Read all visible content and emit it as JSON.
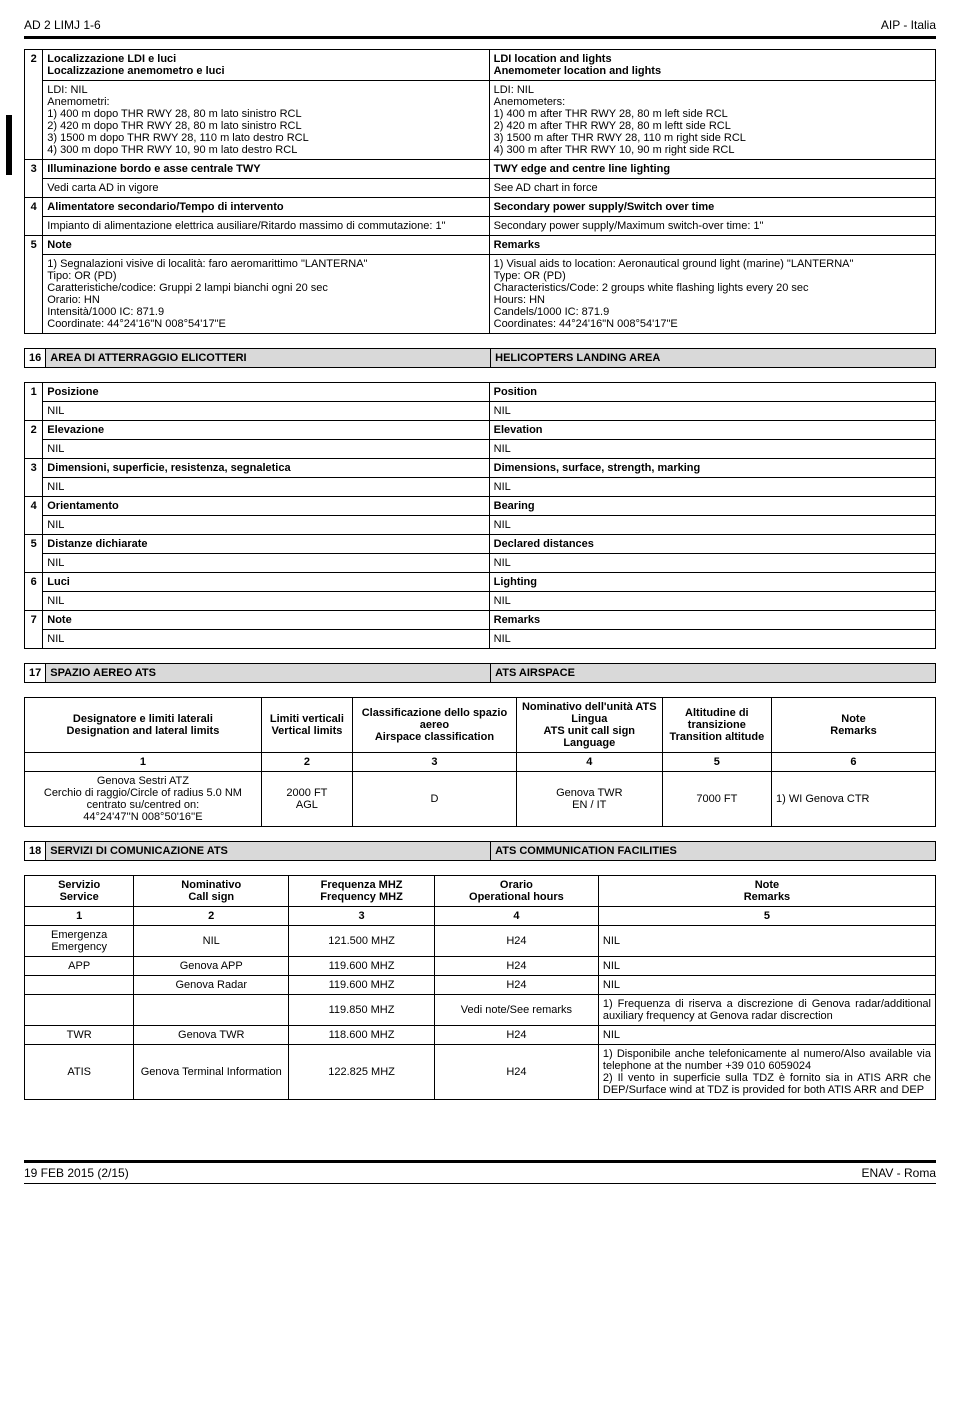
{
  "header": {
    "left": "AD 2 LIMJ 1-6",
    "right": "AIP - Italia"
  },
  "footer": {
    "left": "19 FEB 2015   (2/15)",
    "right": "ENAV - Roma"
  },
  "sec_top": {
    "r2": {
      "num": "2",
      "it_hdr1": "Localizzazione LDI e luci",
      "it_hdr2": "Localizzazione anemometro e luci",
      "en_hdr1": "LDI location and lights",
      "en_hdr2": "Anemometer location and lights",
      "it_l1": "LDI: NIL",
      "it_l2": "Anemometri:",
      "it_l3": "1) 400 m dopo THR RWY 28, 80 m lato sinistro RCL",
      "it_l4": "2) 420 m dopo THR RWY 28, 80 m lato sinistro RCL",
      "it_l5": "3) 1500 m dopo THR RWY 28, 110 m lato destro RCL",
      "it_l6": "4) 300 m dopo THR RWY 10, 90 m lato destro RCL",
      "en_l1": "LDI: NIL",
      "en_l2": "Anemometers:",
      "en_l3": "1) 400 m after THR RWY 28, 80 m left side RCL",
      "en_l4": "2) 420 m after THR RWY 28, 80 m leftt side RCL",
      "en_l5": "3) 1500 m after THR RWY 28, 110 m right side RCL",
      "en_l6": "4) 300 m after THR RWY 10, 90 m right side RCL"
    },
    "r3": {
      "num": "3",
      "it_hdr": "Illuminazione bordo e asse centrale TWY",
      "en_hdr": "TWY edge and centre line lighting",
      "it_val": "Vedi carta AD in vigore",
      "en_val": "See AD chart in force"
    },
    "r4": {
      "num": "4",
      "it_hdr": "Alimentatore secondario/Tempo di intervento",
      "en_hdr": "Secondary power supply/Switch over time",
      "it_val": "Impianto di alimentazione elettrica ausiliare/Ritardo massimo di commutazione: 1\"",
      "en_val": "Secondary power supply/Maximum switch-over time: 1\""
    },
    "r5": {
      "num": "5",
      "it_hdr": "Note",
      "en_hdr": "Remarks",
      "it_l1": "1)    Segnalazioni visive di località: faro aeromarittimo \"LANTERNA\"",
      "it_l2": "Tipo: OR (PD)",
      "it_l3": "Caratteristiche/codice: Gruppi 2 lampi bianchi ogni 20 sec",
      "it_l4": "Orario: HN",
      "it_l5": "Intensità/1000 IC: 871.9",
      "it_l6": "Coordinate: 44°24'16\"N 008°54'17\"E",
      "en_l1": "1)   Visual aids to location: Aeronautical ground light (marine) \"LANTERNA\"",
      "en_l2": "Type: OR (PD)",
      "en_l3": "Characteristics/Code: 2 groups white flashing lights every 20 sec",
      "en_l4": "Hours: HN",
      "en_l5": "Candels/1000 IC: 871.9",
      "en_l6": "Coordinates: 44°24'16\"N 008°54'17\"E"
    }
  },
  "sec16": {
    "num": "16",
    "it_title": "AREA DI ATTERRAGGIO ELICOTTERI",
    "en_title": "HELICOPTERS LANDING AREA",
    "rows": [
      {
        "num": "1",
        "it": "Posizione",
        "en": "Position",
        "itv": "NIL",
        "env": "NIL"
      },
      {
        "num": "2",
        "it": "Elevazione",
        "en": "Elevation",
        "itv": "NIL",
        "env": "NIL"
      },
      {
        "num": "3",
        "it": "Dimensioni, superficie, resistenza, segnaletica",
        "en": "Dimensions, surface, strength, marking",
        "itv": "NIL",
        "env": "NIL"
      },
      {
        "num": "4",
        "it": "Orientamento",
        "en": "Bearing",
        "itv": "NIL",
        "env": "NIL"
      },
      {
        "num": "5",
        "it": "Distanze dichiarate",
        "en": "Declared distances",
        "itv": "NIL",
        "env": "NIL"
      },
      {
        "num": "6",
        "it": "Luci",
        "en": "Lighting",
        "itv": "NIL",
        "env": "NIL"
      },
      {
        "num": "7",
        "it": "Note",
        "en": "Remarks",
        "itv": "NIL",
        "env": "NIL"
      }
    ]
  },
  "sec17": {
    "num": "17",
    "it_title": "SPAZIO AEREO ATS",
    "en_title": "ATS AIRSPACE",
    "headers": {
      "c1a": "Designatore e limiti laterali",
      "c1b": "Designation and lateral limits",
      "c2a": "Limiti verticali",
      "c2b": "Vertical limits",
      "c3a": "Classificazione dello spazio aereo",
      "c3b": "Airspace classification",
      "c4a": "Nominativo dell'unità ATS",
      "c4b": "Lingua",
      "c4c": "ATS unit call sign",
      "c4d": "Language",
      "c5a": "Altitudine di transizione",
      "c5b": "Transition altitude",
      "c6a": "Note",
      "c6b": "Remarks"
    },
    "nums": {
      "c1": "1",
      "c2": "2",
      "c3": "3",
      "c4": "4",
      "c5": "5",
      "c6": "6"
    },
    "row": {
      "c1a": "Genova Sestri  ATZ",
      "c1b": "Cerchio di raggio/Circle of radius  5.0 NM",
      "c1c": "centrato su/centred on:",
      "c1d": "44°24'47''N 008°50'16''E",
      "c2a": "2000 FT",
      "c2b": "AGL",
      "c3": "D",
      "c4a": "Genova TWR",
      "c4b": "EN / IT",
      "c5": "7000 FT",
      "c6": "1)  WI Genova CTR"
    }
  },
  "sec18": {
    "num": "18",
    "it_title": "SERVIZI DI COMUNICAZIONE ATS",
    "en_title": "ATS COMMUNICATION FACILITIES",
    "headers": {
      "c1a": "Servizio",
      "c1b": "Service",
      "c2a": "Nominativo",
      "c2b": "Call sign",
      "c3a": "Frequenza MHZ",
      "c3b": "Frequency MHZ",
      "c4a": "Orario",
      "c4b": "Operational hours",
      "c5a": "Note",
      "c5b": "Remarks"
    },
    "nums": {
      "c1": "1",
      "c2": "2",
      "c3": "3",
      "c4": "4",
      "c5": "5"
    },
    "rows": [
      {
        "c1": "Emergenza\nEmergency",
        "c2": "NIL",
        "c3": "121.500 MHZ",
        "c4": "H24",
        "c5": "NIL"
      },
      {
        "c1": "APP",
        "c2": "Genova APP",
        "c3": "119.600 MHZ",
        "c4": "H24",
        "c5": "NIL"
      },
      {
        "c1": "",
        "c2": "Genova Radar",
        "c3": "119.600 MHZ",
        "c4": "H24",
        "c5": "NIL"
      },
      {
        "c1": "",
        "c2": "",
        "c3": "119.850 MHZ",
        "c4": "Vedi note/See remarks",
        "c5": "1)  Frequenza di riserva a discrezione di Genova radar/additional auxiliary frequency at Genova radar discrection"
      },
      {
        "c1": "TWR",
        "c2": "Genova TWR",
        "c3": "118.600 MHZ",
        "c4": "H24",
        "c5": "NIL"
      },
      {
        "c1": "ATIS",
        "c2": "Genova Terminal Information",
        "c3": "122.825 MHZ",
        "c4": "H24",
        "c5": "1)  Disponibile anche telefonicamente al numero/Also available via telephone at the number +39 010 6059024\n2) Il vento in superficie sulla TDZ è fornito sia in ATIS ARR che DEP/Surface wind at TDZ is provided for both ATIS ARR and DEP"
      }
    ]
  }
}
